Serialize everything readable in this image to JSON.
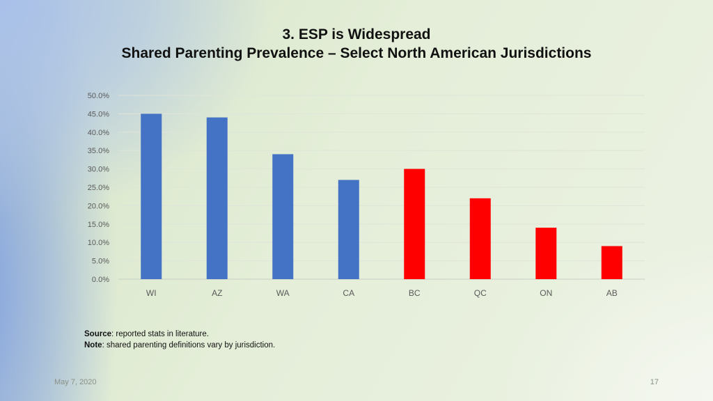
{
  "slide": {
    "title_line1": "3. ESP is Widespread",
    "title_line2": "Shared Parenting Prevalence – Select North American Jurisdictions",
    "date": "May 7, 2020",
    "page_number": "17"
  },
  "notes": {
    "source_label": "Source",
    "source_text": ": reported stats in literature.",
    "note_label": "Note",
    "note_text": ": shared parenting definitions vary by jurisdiction."
  },
  "chart_data": {
    "type": "bar",
    "categories": [
      "WI",
      "AZ",
      "WA",
      "CA",
      "BC",
      "QC",
      "ON",
      "AB"
    ],
    "values": [
      45,
      44,
      34,
      27,
      30,
      22,
      14,
      9
    ],
    "colors": [
      "#4472c4",
      "#4472c4",
      "#4472c4",
      "#4472c4",
      "#ff0000",
      "#ff0000",
      "#ff0000",
      "#ff0000"
    ],
    "yticks": [
      "0.0%",
      "5.0%",
      "10.0%",
      "15.0%",
      "20.0%",
      "25.0%",
      "30.0%",
      "35.0%",
      "40.0%",
      "45.0%",
      "50.0%"
    ],
    "ylim": [
      0,
      50
    ],
    "grid": true,
    "title": "",
    "xlabel": "",
    "ylabel": ""
  }
}
